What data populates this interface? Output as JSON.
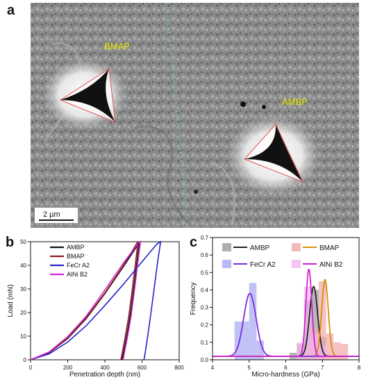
{
  "panels": {
    "a": "a",
    "b": "b",
    "c": "c"
  },
  "micrograph": {
    "labels": [
      "BMAP",
      "AMBP"
    ],
    "scale_bar": "2 µm",
    "label_color": "#e6e600"
  },
  "chart_data": [
    {
      "type": "line",
      "panel": "b",
      "xlabel": "Penetration depth (nm)",
      "ylabel": "Load (mN)",
      "xlim": [
        0,
        800
      ],
      "ylim": [
        0,
        50
      ],
      "xticks": [
        0,
        200,
        400,
        600,
        800
      ],
      "yticks": [
        0,
        10,
        20,
        30,
        40,
        50
      ],
      "legend_position": "top-left",
      "series": [
        {
          "name": "AMBP",
          "color": "#111111",
          "loading": [
            [
              0,
              0
            ],
            [
              100,
              3
            ],
            [
              200,
              9
            ],
            [
              300,
              17.5
            ],
            [
              400,
              28
            ],
            [
              500,
              39.5
            ],
            [
              580,
              49
            ],
            [
              585,
              50
            ]
          ],
          "unloading": [
            [
              585,
              50
            ],
            [
              575,
              43
            ],
            [
              555,
              30
            ],
            [
              535,
              18
            ],
            [
              515,
              9
            ],
            [
              500,
              3
            ],
            [
              492,
              0
            ]
          ]
        },
        {
          "name": "BMAP",
          "color": "#8b1a1a",
          "loading": [
            [
              0,
              0
            ],
            [
              100,
              3.1
            ],
            [
              200,
              9.2
            ],
            [
              300,
              17.8
            ],
            [
              400,
              28.3
            ],
            [
              500,
              40
            ],
            [
              572,
              49.3
            ],
            [
              578,
              50
            ]
          ],
          "unloading": [
            [
              578,
              50
            ],
            [
              568,
              43
            ],
            [
              548,
              30
            ],
            [
              528,
              18
            ],
            [
              508,
              9
            ],
            [
              494,
              3
            ],
            [
              486,
              0
            ]
          ]
        },
        {
          "name": "FeCr A2",
          "color": "#2222cc",
          "loading": [
            [
              0,
              0
            ],
            [
              100,
              2.5
            ],
            [
              200,
              7.5
            ],
            [
              300,
              14.5
            ],
            [
              400,
              23
            ],
            [
              500,
              32
            ],
            [
              600,
              41.5
            ],
            [
              680,
              49
            ],
            [
              700,
              50
            ]
          ],
          "unloading": [
            [
              700,
              50
            ],
            [
              685,
              42
            ],
            [
              665,
              30
            ],
            [
              645,
              18
            ],
            [
              627,
              8
            ],
            [
              615,
              2
            ],
            [
              610,
              0
            ]
          ]
        },
        {
          "name": "AlNi B2",
          "color": "#cc22cc",
          "loading": [
            [
              0,
              0
            ],
            [
              100,
              3.3
            ],
            [
              200,
              9.8
            ],
            [
              300,
              18.5
            ],
            [
              400,
              29.5
            ],
            [
              500,
              41
            ],
            [
              580,
              49.4
            ],
            [
              592,
              50
            ]
          ],
          "unloading": [
            [
              592,
              50
            ],
            [
              580,
              43
            ],
            [
              560,
              30
            ],
            [
              540,
              18
            ],
            [
              520,
              9
            ],
            [
              505,
              3
            ],
            [
              498,
              0
            ]
          ]
        }
      ]
    },
    {
      "type": "bar",
      "panel": "c",
      "xlabel": "Micro-hardness (GPa)",
      "ylabel": "Frequency",
      "xlim": [
        4,
        8
      ],
      "ylim": [
        0,
        0.7
      ],
      "xticks": [
        4,
        5,
        6,
        7,
        8
      ],
      "yticks": [
        0.0,
        0.1,
        0.2,
        0.3,
        0.4,
        0.5,
        0.6,
        0.7
      ],
      "legend_position": "top",
      "series": [
        {
          "name": "AMBP",
          "color": "#222222",
          "fill": "#9a9a9a",
          "bins": [
            [
              6.1,
              6.3,
              0.04
            ],
            [
              6.3,
              6.5,
              0.09
            ],
            [
              6.5,
              6.7,
              0.34
            ],
            [
              6.7,
              6.9,
              0.4
            ],
            [
              6.9,
              7.1,
              0.13
            ]
          ],
          "fit": {
            "mu": 6.76,
            "sigma": 0.11,
            "peak": 0.42
          }
        },
        {
          "name": "BMAP",
          "color": "#d4900a",
          "fill": "#f2a6a6",
          "bins": [
            [
              6.5,
              6.7,
              0.09
            ],
            [
              6.7,
              6.9,
              0.18
            ],
            [
              6.9,
              7.1,
              0.45
            ],
            [
              7.1,
              7.3,
              0.15
            ],
            [
              7.3,
              7.5,
              0.1
            ],
            [
              7.5,
              7.7,
              0.09
            ]
          ],
          "fit": {
            "mu": 7.07,
            "sigma": 0.09,
            "peak": 0.46
          }
        },
        {
          "name": "FeCr A2",
          "color": "#7a2be0",
          "fill": "#a8a6f2",
          "bins": [
            [
              4.6,
              4.8,
              0.22
            ],
            [
              4.8,
              5.0,
              0.22
            ],
            [
              5.0,
              5.2,
              0.44
            ],
            [
              5.2,
              5.4,
              0.11
            ]
          ],
          "fit": {
            "mu": 5.02,
            "sigma": 0.17,
            "peak": 0.38
          }
        },
        {
          "name": "AlNi B2",
          "color": "#d11fd1",
          "fill": "#f4b6ee",
          "bins": [
            [
              6.3,
              6.5,
              0.1
            ],
            [
              6.5,
              6.7,
              0.42
            ],
            [
              6.7,
              6.9,
              0.15
            ],
            [
              6.9,
              7.1,
              0.08
            ]
          ],
          "fit": {
            "mu": 6.63,
            "sigma": 0.08,
            "peak": 0.52
          }
        }
      ]
    }
  ]
}
